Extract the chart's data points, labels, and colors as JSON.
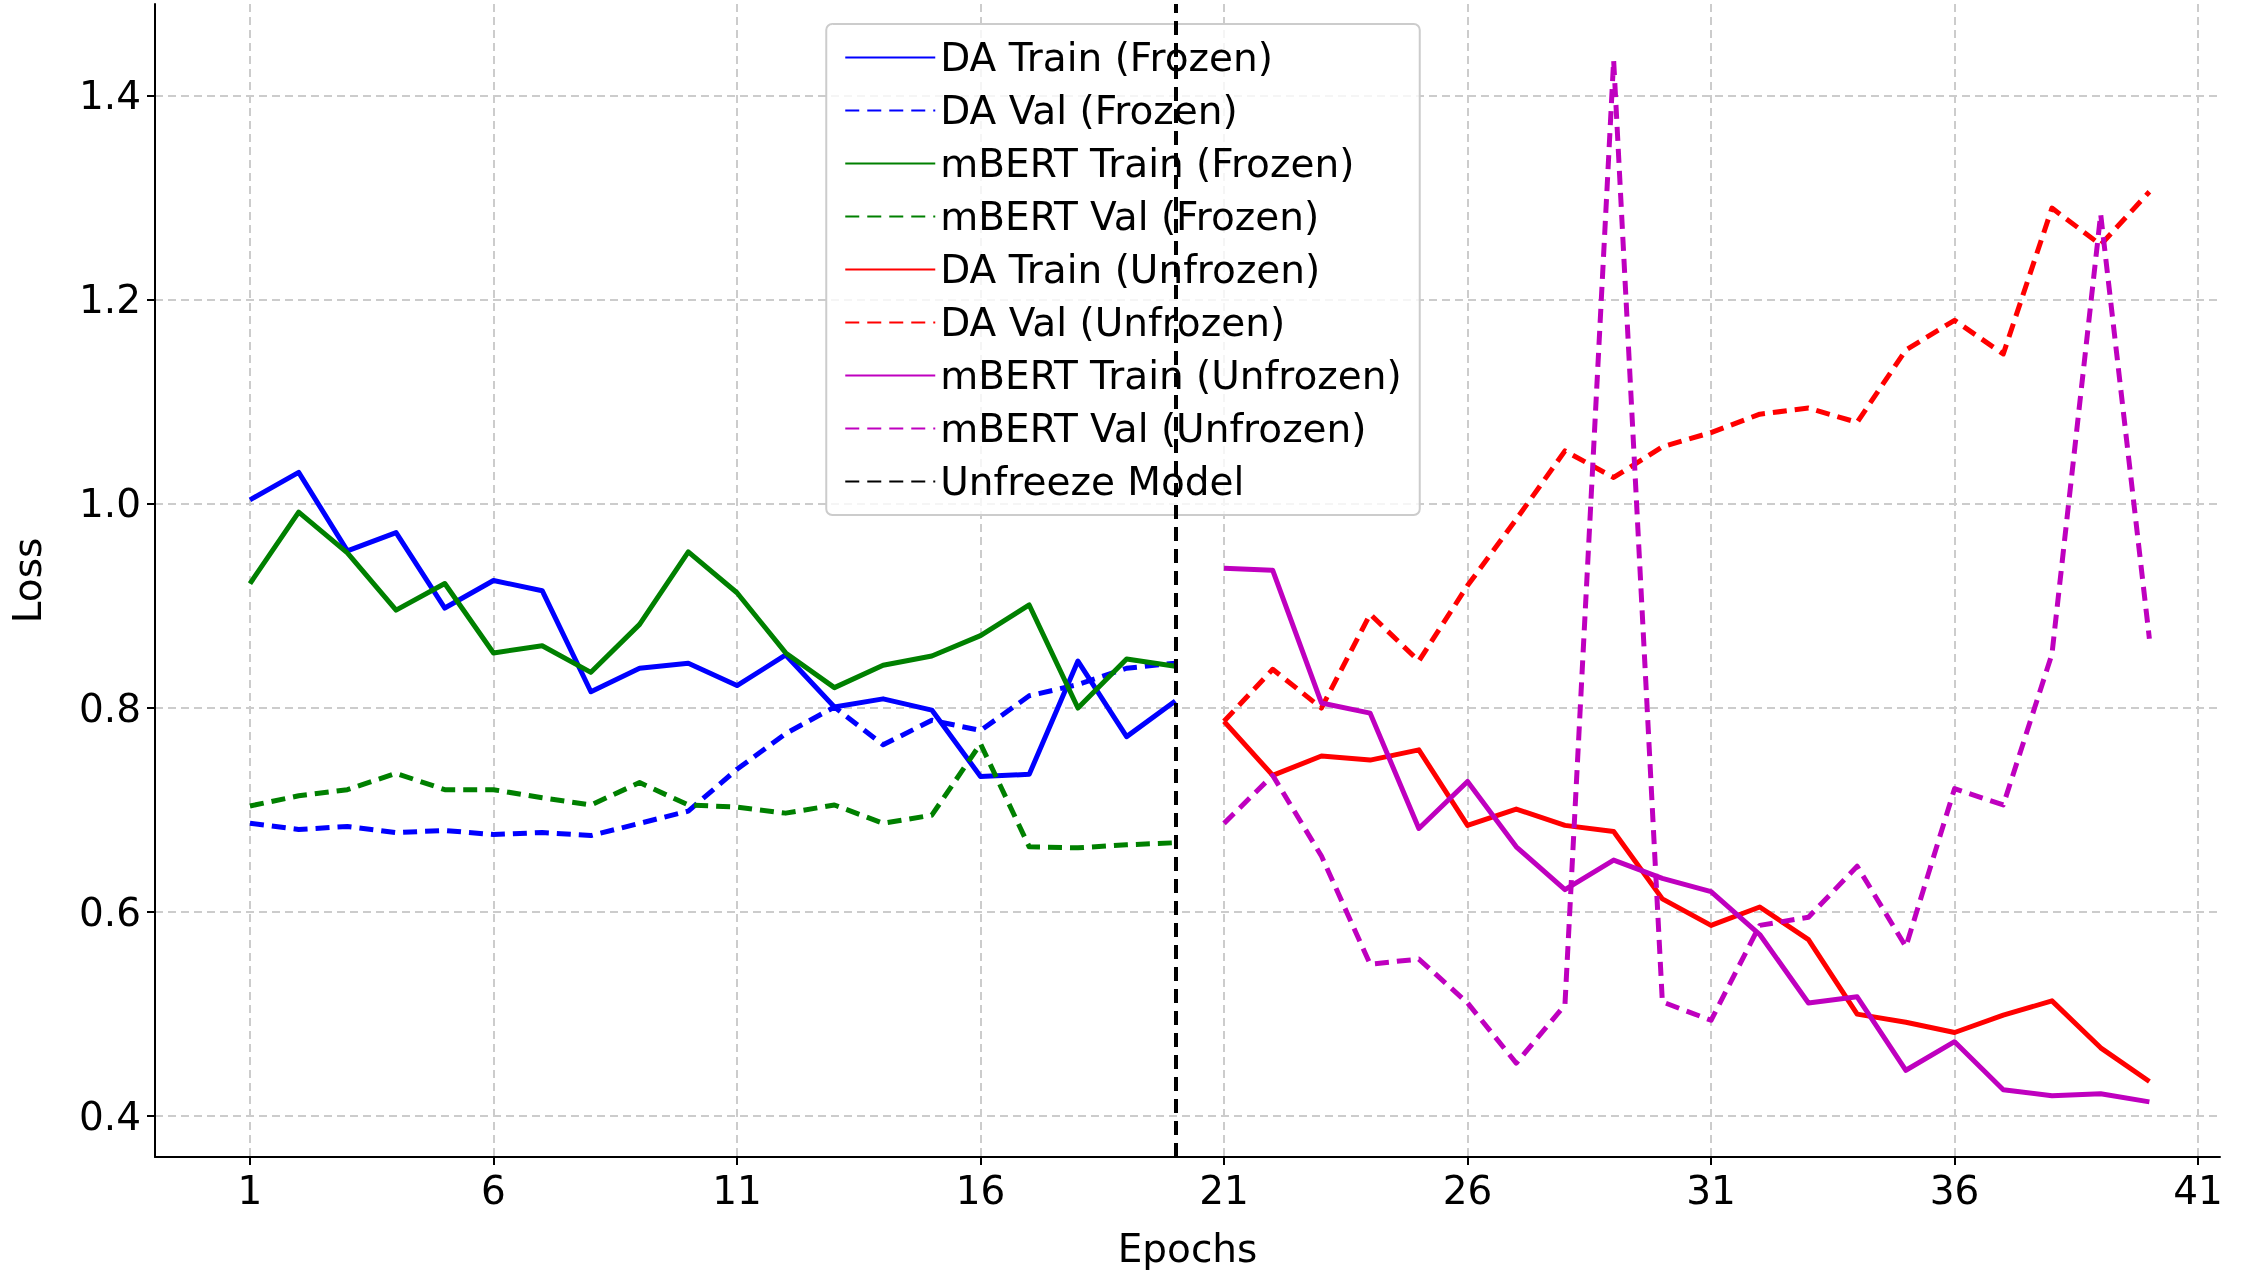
{
  "chart_data": {
    "type": "line",
    "xlabel": "Epochs",
    "ylabel": "Loss",
    "xlim": [
      -0.95,
      41.45
    ],
    "xticks": [
      1,
      6,
      11,
      16,
      21,
      26,
      31,
      36,
      41
    ],
    "ylim": [
      0.36,
      1.49
    ],
    "yticks": [
      0.4,
      0.6,
      0.8,
      {
        "value": 1,
        "label": "1.0"
      },
      1.2,
      1.4
    ],
    "grid": true,
    "legend": "top",
    "marker": "none",
    "series": [
      {
        "name": "DA Train (Frozen)",
        "color": "#0000ff",
        "line_style": "solid",
        "x": [
          1,
          2,
          3,
          4,
          5,
          6,
          7,
          8,
          9,
          10,
          11,
          12,
          13,
          14,
          15,
          16,
          17,
          18,
          19,
          20
        ],
        "values": [
          1.004,
          1.031,
          0.954,
          0.972,
          0.898,
          0.925,
          0.915,
          0.816,
          0.839,
          0.844,
          0.822,
          0.852,
          0.801,
          0.809,
          0.798,
          0.733,
          0.735,
          0.846,
          0.772,
          0.807
        ]
      },
      {
        "name": "DA Val (Frozen)",
        "color": "#0000ff",
        "line_style": "dashed",
        "x": [
          1,
          2,
          3,
          4,
          5,
          6,
          7,
          8,
          9,
          10,
          11,
          12,
          13,
          14,
          15,
          16,
          17,
          18,
          19,
          20
        ],
        "values": [
          0.687,
          0.681,
          0.684,
          0.678,
          0.68,
          0.676,
          0.678,
          0.675,
          0.687,
          0.699,
          0.74,
          0.775,
          0.801,
          0.764,
          0.788,
          0.778,
          0.812,
          0.823,
          0.839,
          0.844
        ]
      },
      {
        "name": "mBERT Train (Frozen)",
        "color": "#008000",
        "line_style": "solid",
        "x": [
          1,
          2,
          3,
          4,
          5,
          6,
          7,
          8,
          9,
          10,
          11,
          12,
          13,
          14,
          15,
          16,
          17,
          18,
          19,
          20
        ],
        "values": [
          0.922,
          0.992,
          0.952,
          0.896,
          0.922,
          0.854,
          0.861,
          0.835,
          0.882,
          0.953,
          0.913,
          0.854,
          0.82,
          0.842,
          0.851,
          0.871,
          0.901,
          0.8,
          0.848,
          0.841
        ]
      },
      {
        "name": "mBERT Val (Frozen)",
        "color": "#008000",
        "line_style": "dashed",
        "x": [
          1,
          2,
          3,
          4,
          5,
          6,
          7,
          8,
          9,
          10,
          11,
          12,
          13,
          14,
          15,
          16,
          17,
          18,
          19,
          20
        ],
        "values": [
          0.704,
          0.714,
          0.72,
          0.736,
          0.72,
          0.72,
          0.712,
          0.705,
          0.727,
          0.705,
          0.703,
          0.697,
          0.705,
          0.687,
          0.695,
          0.765,
          0.664,
          0.663,
          0.666,
          0.668
        ]
      },
      {
        "name": "DA Train (Unfrozen)",
        "color": "#ff0000",
        "line_style": "solid",
        "x": [
          21,
          22,
          23,
          24,
          25,
          26,
          27,
          28,
          29,
          30,
          31,
          32,
          33,
          34,
          35,
          36,
          37,
          38,
          39,
          40
        ],
        "values": [
          0.787,
          0.734,
          0.753,
          0.749,
          0.759,
          0.685,
          0.701,
          0.685,
          0.679,
          0.613,
          0.587,
          0.605,
          0.573,
          0.5,
          0.492,
          0.482,
          0.499,
          0.513,
          0.467,
          0.434
        ]
      },
      {
        "name": "DA Val (Unfrozen)",
        "color": "#ff0000",
        "line_style": "dashed",
        "x": [
          21,
          22,
          23,
          24,
          25,
          26,
          27,
          28,
          29,
          30,
          31,
          32,
          33,
          34,
          35,
          36,
          37,
          38,
          39,
          40
        ],
        "values": [
          0.787,
          0.838,
          0.8,
          0.892,
          0.846,
          0.92,
          0.985,
          1.052,
          1.026,
          1.056,
          1.07,
          1.088,
          1.094,
          1.08,
          1.151,
          1.18,
          1.147,
          1.29,
          1.254,
          1.306
        ]
      },
      {
        "name": "mBERT Train (Unfrozen)",
        "color": "#bf00bf",
        "line_style": "solid",
        "x": [
          21,
          22,
          23,
          24,
          25,
          26,
          27,
          28,
          29,
          30,
          31,
          32,
          33,
          34,
          35,
          36,
          37,
          38,
          39,
          40
        ],
        "values": [
          0.937,
          0.935,
          0.805,
          0.795,
          0.682,
          0.728,
          0.664,
          0.622,
          0.651,
          0.633,
          0.62,
          0.578,
          0.511,
          0.517,
          0.445,
          0.473,
          0.426,
          0.42,
          0.422,
          0.414
        ]
      },
      {
        "name": "mBERT Val (Unfrozen)",
        "color": "#bf00bf",
        "line_style": "dashed",
        "x": [
          21,
          22,
          23,
          24,
          25,
          26,
          27,
          28,
          29,
          30,
          31,
          32,
          33,
          34,
          35,
          36,
          37,
          38,
          39,
          40
        ],
        "values": [
          0.687,
          0.734,
          0.655,
          0.549,
          0.554,
          0.511,
          0.452,
          0.509,
          1.435,
          0.512,
          0.494,
          0.587,
          0.595,
          0.645,
          0.566,
          0.721,
          0.705,
          0.853,
          1.284,
          0.868
        ]
      }
    ],
    "ref_lines": [
      {
        "axis": "x",
        "value": 20,
        "label": "Unfreeze Model",
        "color": "#000000",
        "line_style": "dashed"
      }
    ]
  }
}
